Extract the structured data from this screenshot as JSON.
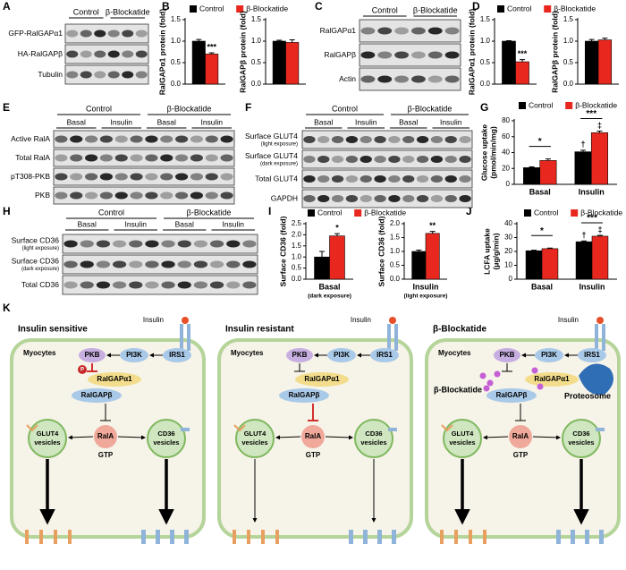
{
  "panel_letters": [
    "A",
    "B",
    "C",
    "D",
    "E",
    "F",
    "G",
    "H",
    "I",
    "J",
    "K"
  ],
  "blots": [
    {
      "groups": [
        "Control",
        "β-Blockatide"
      ],
      "rows": [
        {
          "label": "GFP-RalGAPα1"
        },
        {
          "label": "HA-RalGAPβ"
        },
        {
          "label": "Tubulin"
        }
      ]
    },
    {
      "groups": [
        "Control",
        "β-Blockatide"
      ],
      "rows": [
        {
          "label": "RalGAPα1"
        },
        {
          "label": "RalGAPβ"
        },
        {
          "label": "Actin"
        }
      ]
    },
    {
      "groups": [
        "Control",
        "β-Blockatide"
      ],
      "conditions": [
        "Basal",
        "Insulin",
        "Basal",
        "Insulin"
      ],
      "rows": [
        {
          "label": "Active RalA"
        },
        {
          "label": "Total RalA"
        },
        {
          "label": "pT308-PKB"
        },
        {
          "label": "PKB"
        }
      ]
    },
    {
      "groups": [
        "Control",
        "β-Blockatide"
      ],
      "conditions": [
        "Basal",
        "Insulin",
        "Basal",
        "Insulin"
      ],
      "rows": [
        {
          "label": "Surface GLUT4",
          "note": "(light exposure)"
        },
        {
          "label": "Surface GLUT4",
          "note": "(dark exposure)"
        },
        {
          "label": "Total GLUT4"
        },
        {
          "label": "GAPDH"
        }
      ]
    },
    {
      "groups": [
        "Control",
        "β-Blockatide"
      ],
      "conditions": [
        "Basal",
        "Insulin",
        "Basal",
        "Insulin"
      ],
      "rows": [
        {
          "label": "Surface CD36",
          "note": "(light exposure)"
        },
        {
          "label": "Surface CD36",
          "note": "(dark exposure)"
        },
        {
          "label": "Total CD36"
        }
      ]
    }
  ],
  "chart_data": [
    {
      "type": "bar",
      "ylabel": "RalGAPα1 protein (fold)",
      "categories": [
        null
      ],
      "series": [
        {
          "name": "Control",
          "color": "#000000",
          "values": [
            1.0
          ],
          "errors": [
            0.04
          ]
        },
        {
          "name": "β-Blockatide",
          "color": "#e8281e",
          "values": [
            0.7
          ],
          "errors": [
            0.03
          ],
          "symbols": [
            "***"
          ]
        }
      ],
      "ylim": [
        0,
        1.5
      ],
      "yticks": [
        {
          "value": 0,
          "label": "0.0"
        },
        0.5,
        {
          "value": 1,
          "label": "1.0"
        },
        1.5
      ]
    },
    {
      "type": "bar",
      "ylabel": "RalGAPβ protein (fold)",
      "categories": [
        null
      ],
      "series": [
        {
          "color": "#000000",
          "values": [
            1.0
          ],
          "errors": [
            0.02
          ]
        },
        {
          "color": "#e8281e",
          "values": [
            0.97
          ],
          "errors": [
            0.06
          ]
        }
      ],
      "ylim": [
        0,
        1.5
      ],
      "yticks": [
        {
          "value": 0,
          "label": "0.0"
        },
        0.5,
        {
          "value": 1,
          "label": "1.0"
        },
        1.5
      ]
    },
    {
      "type": "bar",
      "ylabel": "RalGAPα1 protein (fold)",
      "categories": [
        null
      ],
      "series": [
        {
          "name": "Control",
          "color": "#000000",
          "values": [
            1.0
          ],
          "errors": [
            0.01
          ]
        },
        {
          "name": "β-Blockatide",
          "color": "#e8281e",
          "values": [
            0.52
          ],
          "errors": [
            0.05
          ],
          "symbols": [
            "***"
          ]
        }
      ],
      "ylim": [
        0,
        1.5
      ],
      "yticks": [
        {
          "value": 0,
          "label": "0.0"
        },
        0.5,
        {
          "value": 1,
          "label": "1.0"
        },
        1.5
      ]
    },
    {
      "type": "bar",
      "ylabel": "RalGAPβ protein (fold)",
      "categories": [
        null
      ],
      "series": [
        {
          "color": "#000000",
          "values": [
            1.0
          ],
          "errors": [
            0.04
          ]
        },
        {
          "color": "#e8281e",
          "values": [
            1.03
          ],
          "errors": [
            0.04
          ]
        }
      ],
      "ylim": [
        0,
        1.5
      ],
      "yticks": [
        {
          "value": 0,
          "label": "0.0"
        },
        0.5,
        {
          "value": 1,
          "label": "1.0"
        },
        1.5
      ]
    },
    {
      "type": "bar",
      "ylabel": "Glucose uptake",
      "ylabel_unit": "(pmol/min/mg)",
      "categories": [
        "Basal",
        "Insulin"
      ],
      "brackets": [
        "*",
        "***"
      ],
      "series": [
        {
          "name": "Control",
          "color": "#000000",
          "values": [
            21,
            41
          ],
          "errors": [
            1,
            2
          ],
          "symbols": [
            null,
            "†"
          ]
        },
        {
          "name": "β-Blockatide",
          "color": "#e8281e",
          "values": [
            30,
            65
          ],
          "errors": [
            2,
            2
          ],
          "symbols": [
            null,
            "‡"
          ]
        }
      ],
      "ylim": [
        0,
        80
      ],
      "yticks": [
        0,
        20,
        40,
        60,
        80
      ]
    },
    {
      "type": "bar",
      "ylabel": "Surface CD36 (fold)",
      "categories": [
        "Basal"
      ],
      "category_notes": [
        "(dark exposure)"
      ],
      "series": [
        {
          "name": "Control",
          "color": "#000000",
          "values": [
            1.0
          ],
          "errors": [
            0.25
          ]
        },
        {
          "name": "β-Blockatide",
          "color": "#e8281e",
          "values": [
            1.95
          ],
          "errors": [
            0.1
          ],
          "symbols": [
            "*"
          ]
        }
      ],
      "ylim": [
        0,
        2.5
      ],
      "yticks": [
        {
          "value": 0,
          "label": "0.0"
        },
        0.5,
        {
          "value": 1,
          "label": "1.0"
        },
        1.5,
        {
          "value": 2,
          "label": "2.0"
        },
        2.5
      ]
    },
    {
      "type": "bar",
      "ylabel": "Surface CD36 (fold)",
      "categories": [
        "Insulin"
      ],
      "category_notes": [
        "(light exposure)"
      ],
      "series": [
        {
          "color": "#000000",
          "values": [
            1.0
          ],
          "errors": [
            0.05
          ]
        },
        {
          "color": "#e8281e",
          "values": [
            1.65
          ],
          "errors": [
            0.07
          ],
          "symbols": [
            "**"
          ]
        }
      ],
      "ylim": [
        0,
        2.0
      ],
      "yticks": [
        {
          "value": 0,
          "label": "0.0"
        },
        0.5,
        {
          "value": 1,
          "label": "1.0"
        },
        1.5,
        {
          "value": 2,
          "label": "2.0"
        }
      ]
    },
    {
      "type": "bar",
      "ylabel": "LCFA uptake",
      "ylabel_unit": "(μg/g/min)",
      "categories": [
        "Basal",
        "Insulin"
      ],
      "brackets": [
        "*",
        "***"
      ],
      "series": [
        {
          "name": "Control",
          "color": "#000000",
          "values": [
            20.5,
            27
          ],
          "errors": [
            0.4,
            0.6
          ],
          "symbols": [
            null,
            "†"
          ]
        },
        {
          "name": "β-Blockatide",
          "color": "#e8281e",
          "values": [
            22,
            31
          ],
          "errors": [
            0.4,
            0.6
          ],
          "symbols": [
            null,
            "‡"
          ]
        }
      ],
      "ylim": [
        0,
        40
      ],
      "yticks": [
        0,
        10,
        20,
        30,
        40
      ]
    }
  ],
  "diagram": {
    "cells": [
      {
        "title": "Insulin sensitive",
        "ligand": "Insulin",
        "cell": "Myocytes",
        "pkb": "PKB",
        "pi3k": "PI3K",
        "irs1": "IRS1",
        "phospho": "P",
        "ralgap_a1": "RalGAPα1",
        "ralgap_b": "RalGAPβ",
        "rala": "RalA",
        "gtp": "GTP",
        "glut4": [
          "GLUT4",
          "vesicles"
        ],
        "cd36": [
          "CD36",
          "vesicles"
        ]
      },
      {
        "title": "Insulin resistant",
        "ligand": "Insulin",
        "cell": "Myocytes",
        "pkb": "PKB",
        "pi3k": "PI3K",
        "irs1": "IRS1",
        "ralgap_a1": "RalGAPα1",
        "ralgap_b": "RalGAPβ",
        "rala": "RalA",
        "gtp": "GTP",
        "glut4": [
          "GLUT4",
          "vesicles"
        ],
        "cd36": [
          "CD36",
          "vesicles"
        ]
      },
      {
        "title": "β-Blockatide",
        "ligand": "Insulin",
        "cell": "Myocytes",
        "pkb": "PKB",
        "pi3k": "PI3K",
        "irs1": "IRS1",
        "ralgap_a1": "RalGAPα1",
        "ralgap_b": "RalGAPβ",
        "rala": "RalA",
        "gtp": "GTP",
        "glut4": [
          "GLUT4",
          "vesicles"
        ],
        "cd36": [
          "CD36",
          "vesicles"
        ],
        "blockatide": "β-Blockatide",
        "proteosome": "Proteosome"
      }
    ]
  }
}
